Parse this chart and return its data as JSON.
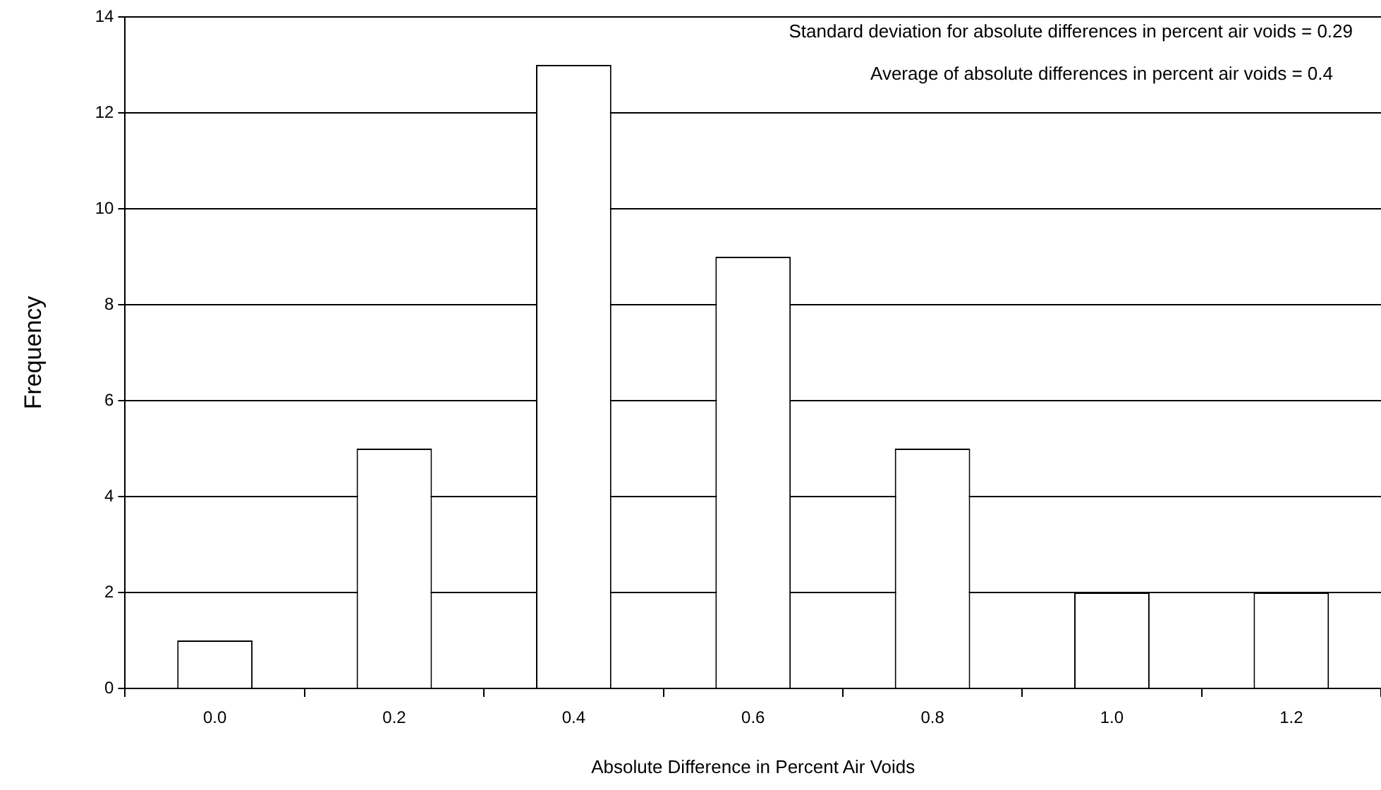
{
  "chart_data": {
    "type": "bar",
    "xlabel": "Absolute Difference in Percent Air Voids",
    "ylabel": "Frequency",
    "categories": [
      "0.0",
      "0.2",
      "0.4",
      "0.6",
      "0.8",
      "1.0",
      "1.2"
    ],
    "values": [
      1,
      5,
      13,
      9,
      5,
      2,
      2
    ],
    "color": "#ffffff",
    "ylim": [
      0,
      14
    ],
    "yticks": [
      0,
      2,
      4,
      6,
      8,
      10,
      12,
      14
    ],
    "grid": "y",
    "legend": false,
    "annotations": [
      "Standard deviation for absolute differences in percent air voids = 0.29",
      "Average of absolute differences in percent air voids = 0.4"
    ]
  }
}
